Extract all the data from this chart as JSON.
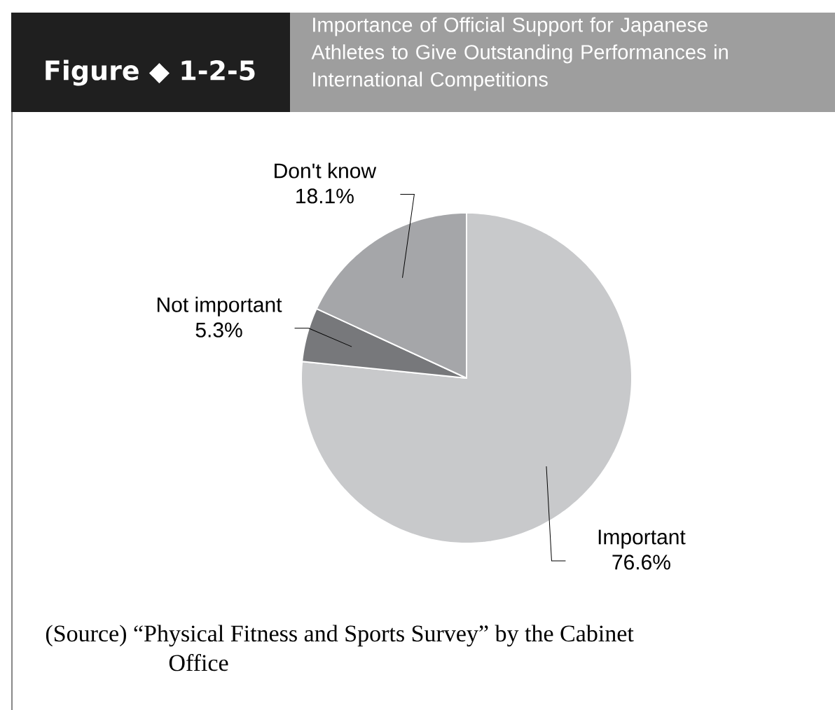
{
  "chart_data": {
    "type": "pie",
    "title": "Importance of Official Support for Japanese Athletes to Give Outstanding Performances in International Competitions",
    "categories": [
      "Important",
      "Not important",
      "Don't know"
    ],
    "values": [
      76.6,
      5.3,
      18.1
    ],
    "value_labels": [
      "76.6%",
      "5.3%",
      "18.1%"
    ],
    "colors": [
      "#c8c9cb",
      "#77787b",
      "#a5a6a9"
    ],
    "annotations": [
      "Figure ◆ 1-2-5",
      "(Source) “Physical Fitness and Sports Survey” by the Cabinet Office"
    ]
  }
}
